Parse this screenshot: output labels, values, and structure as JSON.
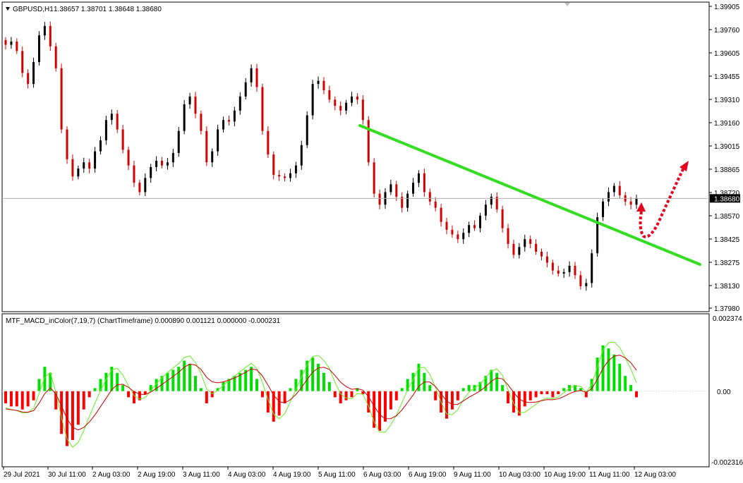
{
  "header": {
    "symbol": "GBPUSD,H1",
    "ohlc": "1.38657 1.38701 1.38648 1.38680",
    "indicator": "MTF_MACD_inColor(7,19,7) (ChartTimeframe) 0.000890 0.001121 0.000000 -0.000231"
  },
  "colors": {
    "bull": "#000000",
    "bear": "#d50000",
    "trendline": "#33dd22",
    "arrow": "#e8001c",
    "hist_up": "#00e000",
    "hist_down": "#ff0000",
    "macd_line": "#66ee22",
    "signal_line": "#cc0000"
  },
  "price_axis_labels": [
    "1.39905",
    "1.39760",
    "1.39605",
    "1.39455",
    "1.39310",
    "1.39160",
    "1.39015",
    "1.38865",
    "1.38720",
    "1.38570",
    "1.38425",
    "1.38275",
    "1.38130",
    "1.37980"
  ],
  "current_price": "1.38680",
  "macd_axis_labels": [
    "0.002374",
    "0.00",
    "-0.002316"
  ],
  "time_labels": [
    "29 Jul 2021",
    "30 Jul 11:00",
    "2 Aug 03:00",
    "2 Aug 19:00",
    "3 Aug 11:00",
    "4 Aug 03:00",
    "4 Aug 19:00",
    "5 Aug 11:00",
    "6 Aug 03:00",
    "6 Aug 19:00",
    "9 Aug 11:00",
    "10 Aug 03:00",
    "10 Aug 19:00",
    "11 Aug 11:00",
    "12 Aug 03:00"
  ],
  "chart_data": [
    {
      "type": "candlestick",
      "symbol": "GBPUSD",
      "timeframe": "H1",
      "y_range": [
        1.3792,
        1.3995
      ],
      "close_series": [
        1.3966,
        1.3968,
        1.3962,
        1.3948,
        1.3941,
        1.3955,
        1.3972,
        1.3978,
        1.3965,
        1.3951,
        1.3912,
        1.3893,
        1.3882,
        1.3887,
        1.3891,
        1.3887,
        1.3898,
        1.3905,
        1.3918,
        1.3922,
        1.3912,
        1.3899,
        1.3889,
        1.3878,
        1.3872,
        1.3881,
        1.3888,
        1.3892,
        1.3889,
        1.3891,
        1.3897,
        1.3911,
        1.3928,
        1.3933,
        1.3922,
        1.3911,
        1.3891,
        1.3898,
        1.3912,
        1.3918,
        1.3917,
        1.3924,
        1.3933,
        1.3942,
        1.3951,
        1.3939,
        1.3911,
        1.3896,
        1.3883,
        1.3882,
        1.3881,
        1.3884,
        1.3889,
        1.3902,
        1.3921,
        1.3941,
        1.3943,
        1.3937,
        1.3931,
        1.3927,
        1.3924,
        1.3929,
        1.3933,
        1.3931,
        1.3918,
        1.3891,
        1.3871,
        1.3864,
        1.3872,
        1.3877,
        1.3869,
        1.3862,
        1.3871,
        1.3878,
        1.3884,
        1.3872,
        1.3866,
        1.3862,
        1.3853,
        1.3848,
        1.3845,
        1.3842,
        1.3846,
        1.3851,
        1.3849,
        1.3857,
        1.3864,
        1.3869,
        1.3861,
        1.3849,
        1.3839,
        1.3832,
        1.3837,
        1.3842,
        1.3839,
        1.3834,
        1.3831,
        1.3827,
        1.3822,
        1.382,
        1.3821,
        1.3825,
        1.3819,
        1.3812,
        1.3814,
        1.3833,
        1.3856,
        1.3866,
        1.3872,
        1.3876,
        1.387,
        1.3866,
        1.3864,
        1.3868
      ],
      "current_price": 1.3868,
      "annotations": [
        "descending green trendline",
        "red dotted arrow pointing up"
      ]
    },
    {
      "type": "bar",
      "name": "MTF_MACD_inColor(7,19,7)",
      "y_range": [
        -0.002316,
        0.002374
      ],
      "histogram": [
        -0.0004,
        -0.0005,
        -0.0005,
        -0.0006,
        -0.0005,
        -0.0003,
        0.0004,
        0.0008,
        0.0006,
        -0.0006,
        -0.0014,
        -0.0018,
        -0.0016,
        -0.0011,
        -0.0006,
        -0.0002,
        0.0001,
        0.0004,
        0.0006,
        0.0008,
        0.0006,
        0.0002,
        -0.0002,
        -0.0004,
        -0.0003,
        -0.0001,
        0.0002,
        0.0004,
        0.0005,
        0.0006,
        0.0007,
        0.0008,
        0.001,
        0.0009,
        0.0005,
        0.0001,
        -0.0004,
        -0.0002,
        0.0001,
        0.0003,
        0.0004,
        0.0005,
        0.0006,
        0.0007,
        0.0008,
        0.0004,
        -0.0002,
        -0.0007,
        -0.001,
        -0.0008,
        -0.0004,
        0.0001,
        0.0004,
        0.0007,
        0.001,
        0.0011,
        0.0009,
        0.0006,
        0.0003,
        -0.0002,
        -0.0004,
        -0.0003,
        -0.0002,
        0.0001,
        -0.0001,
        -0.0007,
        -0.0012,
        -0.0013,
        -0.001,
        -0.0006,
        -0.0003,
        0.0001,
        0.0004,
        0.0006,
        0.0009,
        0.0006,
        0.0002,
        -0.0003,
        -0.0007,
        -0.0009,
        -0.0006,
        -0.0003,
        0.0001,
        0.0002,
        0.0002,
        0.0003,
        0.0005,
        0.0007,
        0.0006,
        0.0002,
        -0.0004,
        -0.0007,
        -0.0008,
        -0.0005,
        -0.0003,
        -0.0002,
        -0.0001,
        -0.0001,
        -0.0002,
        -0.0001,
        0.0001,
        0.0002,
        0.0002,
        0.0001,
        -0.0002,
        0.0004,
        0.0011,
        0.0015,
        0.0014,
        0.0012,
        0.0009,
        0.0005,
        0.0002,
        -0.0002
      ],
      "current_values": [
        0.00089,
        0.001121,
        0.0,
        -0.000231
      ]
    }
  ]
}
